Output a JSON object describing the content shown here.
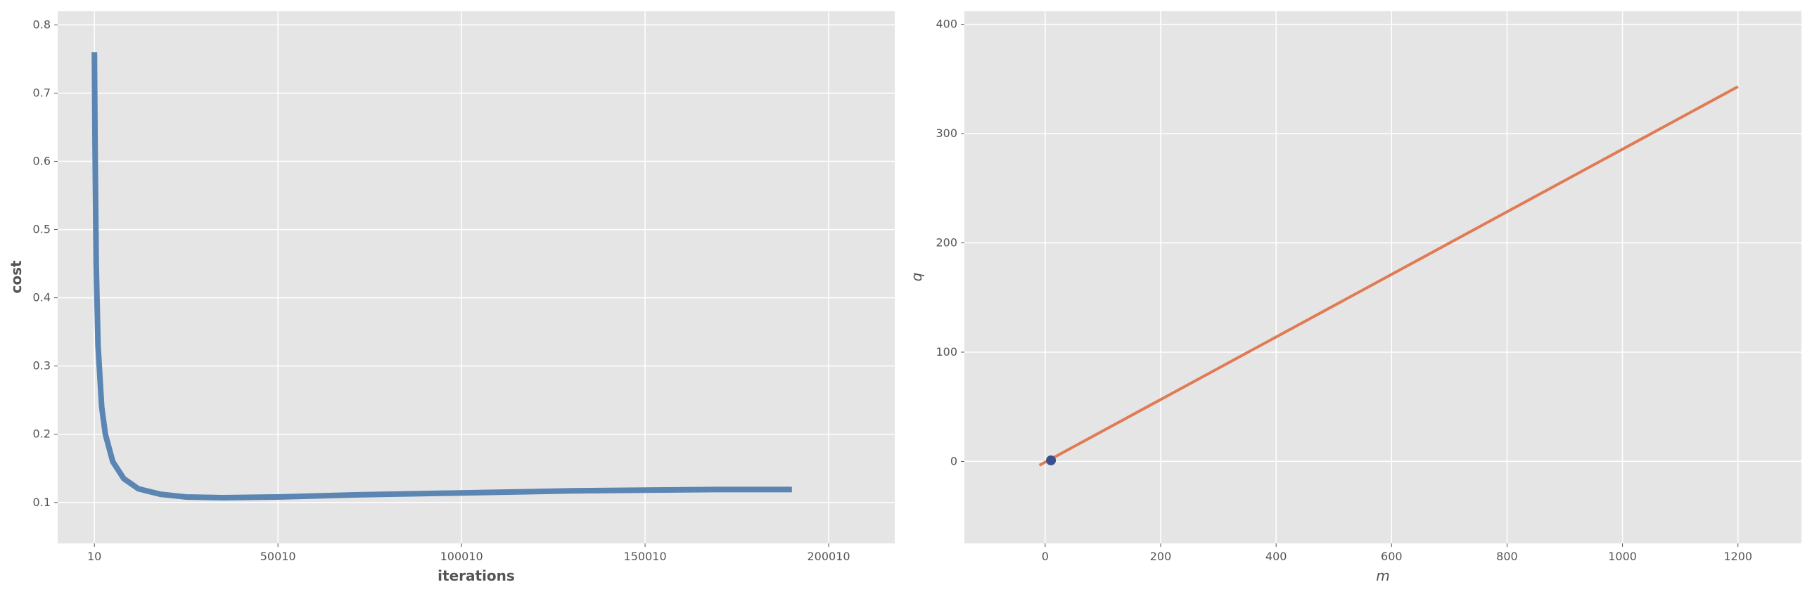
{
  "chart_data": [
    {
      "type": "line",
      "title": "",
      "xlabel": "iterations",
      "ylabel": "cost",
      "xlim": [
        -9990,
        218010
      ],
      "ylim": [
        0.04,
        0.82
      ],
      "xticks": [
        10,
        50010,
        100010,
        150010,
        200010
      ],
      "xtick_labels": [
        "10",
        "50010",
        "100010",
        "150010",
        "200010"
      ],
      "yticks": [
        0.1,
        0.2,
        0.3,
        0.4,
        0.5,
        0.6,
        0.7,
        0.8
      ],
      "ytick_labels": [
        "0.1",
        "0.2",
        "0.3",
        "0.4",
        "0.5",
        "0.6",
        "0.7",
        "0.8"
      ],
      "grid": true,
      "series": [
        {
          "color": "#5b85b3",
          "points": [
            [
              10,
              0.76
            ],
            [
              200,
              0.62
            ],
            [
              500,
              0.45
            ],
            [
              1000,
              0.33
            ],
            [
              2000,
              0.24
            ],
            [
              3000,
              0.2
            ],
            [
              5000,
              0.16
            ],
            [
              8000,
              0.135
            ],
            [
              12000,
              0.12
            ],
            [
              18000,
              0.112
            ],
            [
              25000,
              0.108
            ],
            [
              35000,
              0.107
            ],
            [
              50000,
              0.108
            ],
            [
              70000,
              0.111
            ],
            [
              90000,
              0.113
            ],
            [
              110000,
              0.115
            ],
            [
              130000,
              0.117
            ],
            [
              150000,
              0.118
            ],
            [
              170000,
              0.119
            ],
            [
              190000,
              0.119
            ]
          ]
        }
      ]
    },
    {
      "type": "line",
      "title": "",
      "xlabel": "m",
      "ylabel": "q",
      "xlim": [
        -140,
        1310
      ],
      "ylim": [
        -75,
        412
      ],
      "xticks": [
        0,
        200,
        400,
        600,
        800,
        1000,
        1200
      ],
      "xtick_labels": [
        "0",
        "200",
        "400",
        "600",
        "800",
        "1000",
        "1200"
      ],
      "yticks": [
        0,
        100,
        200,
        300,
        400
      ],
      "ytick_labels": [
        "0",
        "100",
        "200",
        "300",
        "400"
      ],
      "grid": true,
      "series": [
        {
          "color": "#e07b54",
          "points": [
            [
              -10,
              -3.5
            ],
            [
              1200,
              343
            ]
          ]
        },
        {
          "type": "scatter",
          "color": "#3a4f8f",
          "points": [
            [
              10,
              1
            ]
          ]
        }
      ]
    }
  ]
}
